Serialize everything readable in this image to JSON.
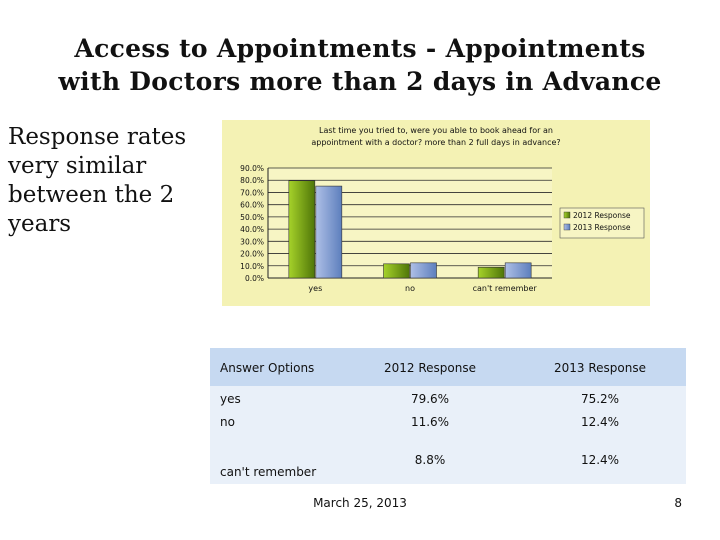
{
  "slide": {
    "title_line1": "Access to Appointments  - Appointments",
    "title_line2": "with Doctors more than 2 days in Advance",
    "note_lines": [
      "Response rates",
      "very similar",
      "between the 2",
      "years"
    ]
  },
  "chart_data": {
    "type": "bar",
    "title_lines": [
      "Last time you tried to, were you able to book ahead for an",
      "appointment with a doctor? more than 2 full days in advance?"
    ],
    "categories": [
      "yes",
      "no",
      "can't remember"
    ],
    "series": [
      {
        "name": "2012 Response",
        "values": [
          79.6,
          11.6,
          8.8
        ],
        "color": "#6f9a10"
      },
      {
        "name": "2013 Response",
        "values": [
          75.2,
          12.4,
          12.4
        ],
        "color": "#7e9ed0"
      }
    ],
    "ylim": [
      0,
      90
    ],
    "yticks": [
      "0.0%",
      "10.0%",
      "20.0%",
      "30.0%",
      "40.0%",
      "50.0%",
      "60.0%",
      "70.0%",
      "80.0%",
      "90.0%"
    ],
    "legend_position": "right",
    "grid": true,
    "background": "#f4f2b4"
  },
  "table": {
    "headers": [
      "Answer Options",
      "2012 Response",
      "2013 Response"
    ],
    "rows": [
      {
        "label": "yes",
        "v2012": "79.6%",
        "v2013": "75.2%"
      },
      {
        "label": "no",
        "v2012": "11.6%",
        "v2013": "12.4%"
      },
      {
        "label": "can't remember",
        "v2012": "8.8%",
        "v2013": "12.4%"
      }
    ],
    "header_color": "#c6d9f1",
    "body_color": "#e9f0f9"
  },
  "footer": {
    "date": "March 25, 2013",
    "page": "8"
  }
}
